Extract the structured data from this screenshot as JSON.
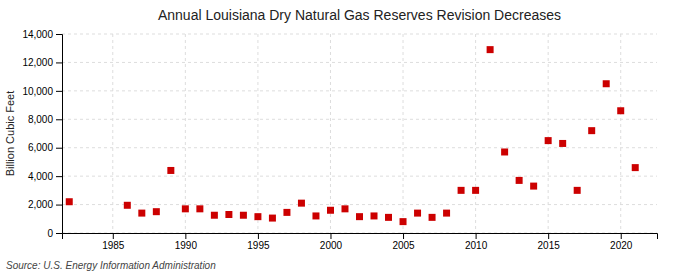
{
  "chart_data": {
    "type": "scatter",
    "title": "Annual Louisiana Dry Natural Gas Reserves Revision Decreases",
    "ylabel": "Billion Cubic Feet",
    "annotations": [
      "Source: U.S. Energy Information Administration"
    ],
    "x": [
      1982,
      1986,
      1987,
      1988,
      1989,
      1990,
      1991,
      1992,
      1993,
      1994,
      1995,
      1996,
      1997,
      1998,
      1999,
      2000,
      2001,
      2002,
      2003,
      2004,
      2005,
      2006,
      2007,
      2008,
      2009,
      2010,
      2011,
      2012,
      2013,
      2014,
      2015,
      2016,
      2017,
      2018,
      2019,
      2020,
      2021
    ],
    "values": [
      2200,
      1950,
      1400,
      1500,
      4400,
      1700,
      1700,
      1250,
      1300,
      1250,
      1150,
      1050,
      1450,
      2100,
      1200,
      1600,
      1700,
      1150,
      1200,
      1100,
      800,
      1400,
      1100,
      1400,
      3000,
      3000,
      12900,
      5700,
      3700,
      3300,
      6500,
      6300,
      3000,
      7200,
      10500,
      8600,
      4600
    ],
    "xlim": [
      1981.5,
      2022.5
    ],
    "ylim": [
      0,
      14000
    ],
    "xticks": [
      1985,
      1990,
      1995,
      2000,
      2005,
      2010,
      2015,
      2020
    ],
    "yticks": [
      0,
      {
        "value": 2000,
        "label": "2,000"
      },
      {
        "value": 4000,
        "label": "4,000"
      },
      {
        "value": 6000,
        "label": "6,000"
      },
      {
        "value": 8000,
        "label": "8,000"
      },
      {
        "value": 10000,
        "label": "10,000"
      },
      {
        "value": 12000,
        "label": "12,000"
      },
      {
        "value": 14000,
        "label": "14,000"
      }
    ],
    "color": "#cc0000",
    "marker": "square",
    "grid": true
  }
}
